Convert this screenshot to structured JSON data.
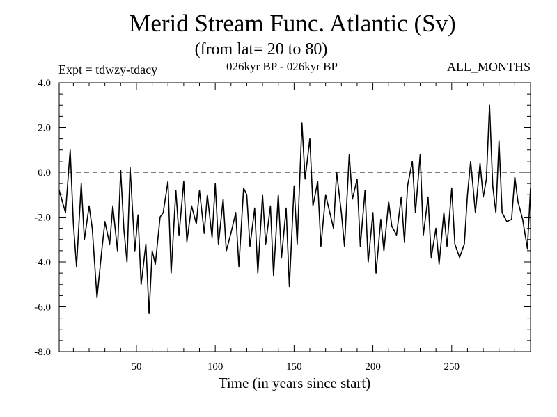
{
  "chart_data": {
    "type": "line",
    "title": "Merid Stream Func. Atlantic (Sv)",
    "subtitle": "(from lat= 20 to 80)",
    "annotations": {
      "left": "Expt = tdwzy-tdacy",
      "center": "026kyr BP - 026kyr BP",
      "right": "ALL_MONTHS"
    },
    "xlabel": "Time (in years since start)",
    "ylabel": "",
    "xlim": [
      1,
      300
    ],
    "ylim": [
      -8.0,
      4.0
    ],
    "xticks": [
      50,
      100,
      150,
      200,
      250
    ],
    "xtick_labels": [
      "50",
      "100",
      "150",
      "200",
      "250"
    ],
    "yticks": [
      4.0,
      2.0,
      0.0,
      -2.0,
      -4.0,
      -6.0,
      -8.0
    ],
    "ytick_labels": [
      "4.0",
      "2.0",
      "0.0",
      "-2.0",
      "-4.0",
      "-6.0",
      "-8.0"
    ],
    "reference_line": {
      "y": 0.0,
      "style": "dashed"
    },
    "grid": false,
    "line_color": "#000000",
    "x": [
      1,
      5,
      8,
      10,
      12,
      15,
      17,
      20,
      22,
      25,
      28,
      30,
      33,
      35,
      38,
      40,
      42,
      44,
      46,
      49,
      51,
      53,
      56,
      58,
      60,
      62,
      65,
      67,
      70,
      72,
      75,
      77,
      80,
      82,
      85,
      88,
      90,
      93,
      95,
      98,
      100,
      102,
      105,
      107,
      110,
      113,
      115,
      118,
      120,
      122,
      125,
      127,
      130,
      132,
      135,
      137,
      140,
      142,
      145,
      147,
      150,
      152,
      155,
      157,
      160,
      162,
      165,
      167,
      170,
      172,
      175,
      177,
      180,
      182,
      185,
      187,
      190,
      192,
      195,
      197,
      200,
      202,
      205,
      207,
      210,
      212,
      215,
      218,
      220,
      222,
      225,
      227,
      230,
      232,
      235,
      237,
      240,
      242,
      245,
      247,
      250,
      252,
      255,
      258,
      260,
      262,
      265,
      268,
      270,
      272,
      274,
      276,
      278,
      280,
      282,
      285,
      288,
      290,
      292,
      295,
      298,
      300
    ],
    "values": [
      -0.8,
      -1.8,
      1.0,
      -2.3,
      -4.2,
      -0.5,
      -3.0,
      -1.5,
      -2.5,
      -5.6,
      -3.5,
      -2.2,
      -3.2,
      -1.5,
      -3.5,
      0.1,
      -2.5,
      -4.0,
      0.2,
      -3.5,
      -1.9,
      -5.0,
      -3.2,
      -6.3,
      -3.5,
      -4.1,
      -2.0,
      -1.8,
      -0.4,
      -4.5,
      -0.8,
      -2.8,
      -0.4,
      -3.1,
      -1.5,
      -2.3,
      -0.8,
      -2.7,
      -1.0,
      -2.9,
      -0.5,
      -3.2,
      -1.2,
      -3.5,
      -2.7,
      -1.8,
      -4.2,
      -0.7,
      -1.0,
      -3.3,
      -1.6,
      -4.5,
      -1.0,
      -3.2,
      -1.5,
      -4.6,
      -1.0,
      -3.8,
      -1.6,
      -5.1,
      -0.6,
      -3.2,
      2.2,
      -0.3,
      1.5,
      -1.5,
      -0.4,
      -3.3,
      -1.0,
      -1.6,
      -2.5,
      0.0,
      -1.8,
      -3.3,
      0.8,
      -1.2,
      -0.3,
      -3.3,
      -0.8,
      -4.0,
      -1.8,
      -4.5,
      -2.1,
      -3.5,
      -1.3,
      -2.4,
      -2.8,
      -1.1,
      -3.1,
      -0.6,
      0.5,
      -1.8,
      0.8,
      -2.8,
      -1.1,
      -3.8,
      -2.5,
      -4.1,
      -1.8,
      -3.3,
      -0.7,
      -3.2,
      -3.8,
      -3.2,
      -1.0,
      0.5,
      -1.8,
      0.4,
      -1.1,
      -0.3,
      3.0,
      -0.6,
      -1.8,
      1.4,
      -1.8,
      -2.2,
      -2.1,
      -0.2,
      -1.3,
      -2.1,
      -3.4,
      -0.7
    ]
  }
}
